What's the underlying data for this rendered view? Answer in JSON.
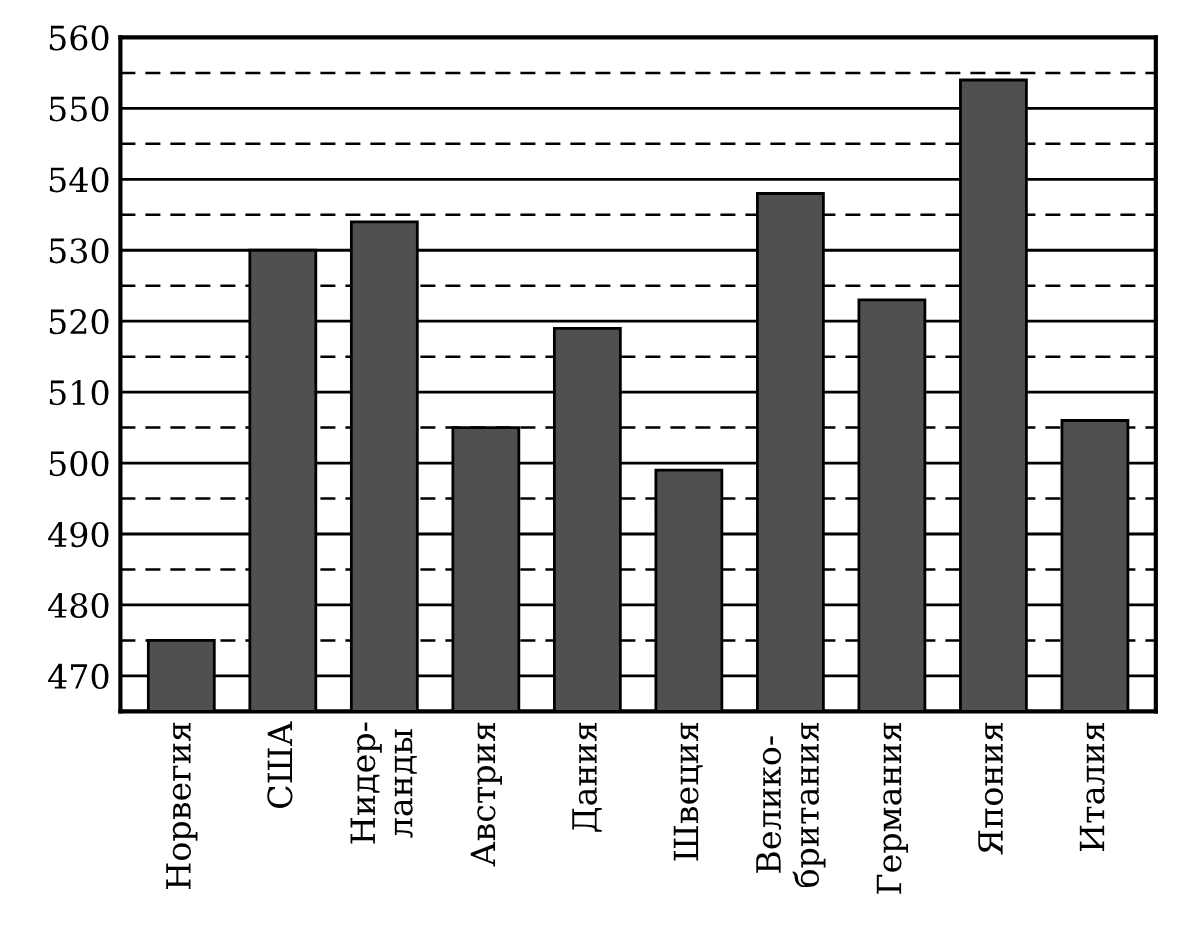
{
  "chart_data": {
    "type": "bar",
    "categories": [
      "Норвегия",
      "США",
      "Нидер-\nланды",
      "Австрия",
      "Дания",
      "Швеция",
      "Велико-\nбритания",
      "Германия",
      "Япония",
      "Италия"
    ],
    "values": [
      475,
      530,
      534,
      505,
      519,
      499,
      538,
      523,
      554,
      506
    ],
    "color": "#505050",
    "ylim": [
      465,
      560
    ],
    "yticks": [
      470,
      480,
      490,
      500,
      510,
      520,
      530,
      540,
      550,
      560
    ],
    "grid": "y",
    "ref_lines": [
      {
        "axis": "y",
        "value": 475,
        "line_style": "dashed"
      },
      {
        "axis": "y",
        "value": 485,
        "line_style": "dashed"
      },
      {
        "axis": "y",
        "value": 495,
        "line_style": "dashed"
      },
      {
        "axis": "y",
        "value": 505,
        "line_style": "dashed"
      },
      {
        "axis": "y",
        "value": 515,
        "line_style": "dashed"
      },
      {
        "axis": "y",
        "value": 525,
        "line_style": "dashed"
      },
      {
        "axis": "y",
        "value": 535,
        "line_style": "dashed"
      },
      {
        "axis": "y",
        "value": 545,
        "line_style": "dashed"
      },
      {
        "axis": "y",
        "value": 555,
        "line_style": "dashed"
      }
    ]
  }
}
